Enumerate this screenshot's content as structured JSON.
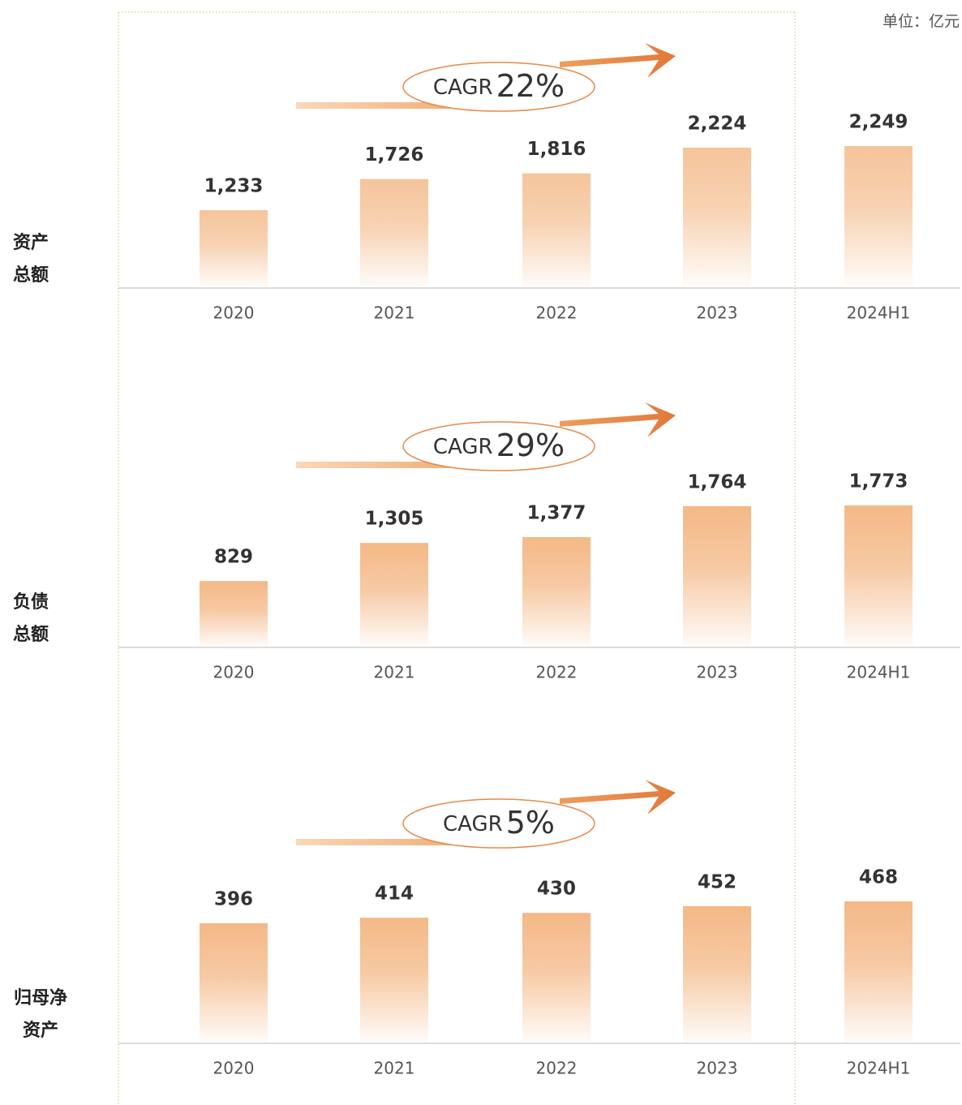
{
  "unit_label": "单位：亿元",
  "chart_data": [
    {
      "type": "bar",
      "label": [
        "资产",
        "总额"
      ],
      "annotation": "CAGR",
      "cagr": {
        "value": 22,
        "label": "22%"
      },
      "categories": [
        "2020",
        "2021",
        "2022",
        "2023",
        "2024H1"
      ],
      "values": [
        1233,
        1726,
        1816,
        2224,
        2249
      ],
      "value_labels": [
        "1,233",
        "1,726",
        "1,816",
        "2,224",
        "2,249"
      ],
      "color": "#f5c49a"
    },
    {
      "type": "bar",
      "label": [
        "负债",
        "总额"
      ],
      "annotation": "CAGR",
      "cagr": {
        "value": 29,
        "label": "29%"
      },
      "categories": [
        "2020",
        "2021",
        "2022",
        "2023",
        "2024H1"
      ],
      "values": [
        829,
        1305,
        1377,
        1764,
        1773
      ],
      "value_labels": [
        "829",
        "1,305",
        "1,377",
        "1,764",
        "1,773"
      ],
      "color": "#f4b886"
    },
    {
      "type": "bar",
      "label": [
        "归母净",
        "资产"
      ],
      "annotation": "CAGR",
      "cagr": {
        "value": 5,
        "label": "5%"
      },
      "categories": [
        "2020",
        "2021",
        "2022",
        "2023",
        "2024H1"
      ],
      "values": [
        396,
        414,
        430,
        452,
        468
      ],
      "value_labels": [
        "396",
        "414",
        "430",
        "452",
        "468"
      ],
      "color": "#f4b886"
    }
  ]
}
